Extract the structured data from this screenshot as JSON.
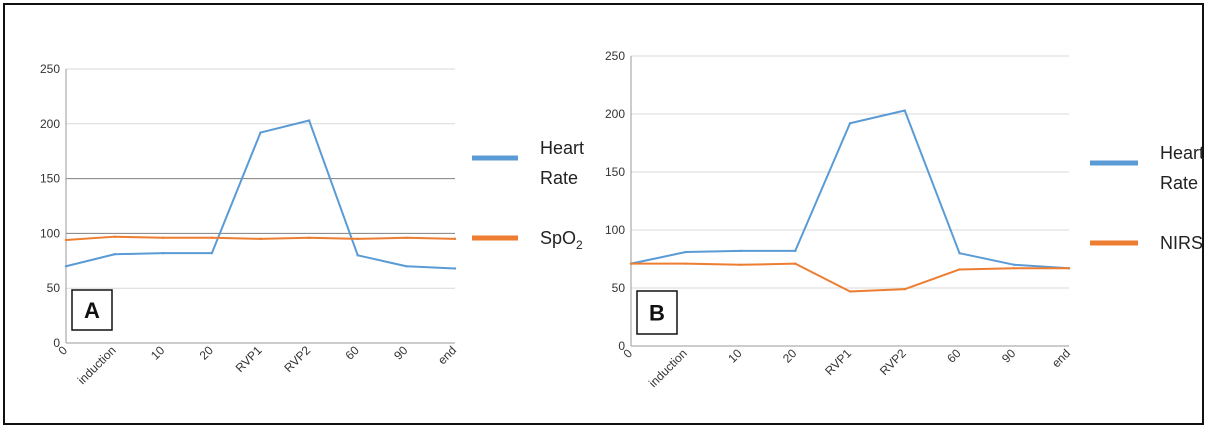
{
  "chart_data": [
    {
      "type": "line",
      "panel_label": "A",
      "categories": [
        "0",
        "induction",
        "10",
        "20",
        "RVP1",
        "RVP2",
        "60",
        "90",
        "end"
      ],
      "ylim": [
        0,
        250
      ],
      "yticks": [
        "0",
        "50",
        "100",
        "150",
        "200",
        "250"
      ],
      "grid": true,
      "legend_position": "right",
      "series": [
        {
          "name": "Heart Rate",
          "name_lines": [
            "Heart",
            "Rate"
          ],
          "color": "#5b9bd5",
          "values": [
            70,
            81,
            82,
            82,
            192,
            203,
            80,
            70,
            68
          ]
        },
        {
          "name": "SpO2",
          "name_lines": [
            "SpO2"
          ],
          "color": "#ed7d31",
          "values": [
            94,
            97,
            96,
            96,
            95,
            96,
            95,
            96,
            95
          ]
        }
      ]
    },
    {
      "type": "line",
      "panel_label": "B",
      "categories": [
        "0",
        "induction",
        "10",
        "20",
        "RVP1",
        "RVP2",
        "60",
        "90",
        "end"
      ],
      "ylim": [
        0,
        250
      ],
      "yticks": [
        "0",
        "50",
        "100",
        "150",
        "200",
        "250"
      ],
      "grid": true,
      "legend_position": "right",
      "series": [
        {
          "name": "Heart Rate",
          "name_lines": [
            "Heart",
            "Rate"
          ],
          "color": "#5b9bd5",
          "values": [
            71,
            81,
            82,
            82,
            192,
            203,
            80,
            70,
            67
          ]
        },
        {
          "name": "NIRS",
          "name_lines": [
            "NIRS"
          ],
          "color": "#ed7d31",
          "values": [
            71,
            71,
            70,
            71,
            47,
            49,
            66,
            67,
            67
          ]
        }
      ]
    }
  ]
}
